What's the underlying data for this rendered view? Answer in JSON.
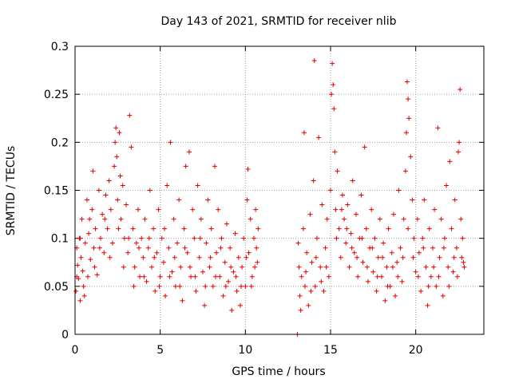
{
  "chart_data": {
    "type": "scatter",
    "title": "Day 143 of 2021, SRMTID for receiver nlib",
    "xlabel": "GPS time / hours",
    "ylabel": "SRMTID / TECUs",
    "xlim": [
      0,
      24
    ],
    "ylim": [
      0,
      0.3
    ],
    "grid": true,
    "marker": "+",
    "marker_color": "#e00000",
    "x_ticks": [
      {
        "value": 0,
        "label": "0"
      },
      {
        "value": 5,
        "label": "5"
      },
      {
        "value": 10,
        "label": "10"
      },
      {
        "value": 15,
        "label": "15"
      },
      {
        "value": 20,
        "label": "20"
      }
    ],
    "y_ticks": [
      {
        "value": 0,
        "label": "0"
      },
      {
        "value": 0.05,
        "label": "0.05"
      },
      {
        "value": 0.1,
        "label": "0.1"
      },
      {
        "value": 0.15,
        "label": "0.15"
      },
      {
        "value": 0.2,
        "label": "0.2"
      },
      {
        "value": 0.25,
        "label": "0.25"
      },
      {
        "value": 0.3,
        "label": "0.3"
      }
    ],
    "series": [
      {
        "name": "SRMTID",
        "color": "#e00000",
        "points": [
          [
            0.05,
            0.045
          ],
          [
            0.1,
            0.09
          ],
          [
            0.15,
            0.072
          ],
          [
            0.2,
            0.058
          ],
          [
            0.25,
            0.1
          ],
          [
            0.3,
            0.035
          ],
          [
            0.35,
            0.08
          ],
          [
            0.4,
            0.12
          ],
          [
            0.45,
            0.066
          ],
          [
            0.5,
            0.05
          ],
          [
            0.6,
            0.095
          ],
          [
            0.7,
            0.14
          ],
          [
            0.75,
            0.06
          ],
          [
            0.8,
            0.105
          ],
          [
            0.9,
            0.078
          ],
          [
            1.0,
            0.13
          ],
          [
            1.05,
            0.17
          ],
          [
            1.1,
            0.09
          ],
          [
            1.2,
            0.11
          ],
          [
            1.3,
            0.062
          ],
          [
            1.4,
            0.15
          ],
          [
            1.5,
            0.1
          ],
          [
            1.6,
            0.125
          ],
          [
            1.7,
            0.085
          ],
          [
            1.8,
            0.145
          ],
          [
            1.9,
            0.11
          ],
          [
            2.0,
            0.16
          ],
          [
            2.1,
            0.13
          ],
          [
            2.2,
            0.095
          ],
          [
            2.3,
            0.175
          ],
          [
            2.35,
            0.2
          ],
          [
            2.4,
            0.215
          ],
          [
            2.45,
            0.185
          ],
          [
            2.5,
            0.14
          ],
          [
            2.6,
            0.21
          ],
          [
            2.65,
            0.165
          ],
          [
            2.7,
            0.12
          ],
          [
            2.8,
            0.155
          ],
          [
            2.9,
            0.1
          ],
          [
            3.0,
            0.135
          ],
          [
            3.1,
            0.085
          ],
          [
            3.2,
            0.228
          ],
          [
            3.3,
            0.195
          ],
          [
            3.4,
            0.11
          ],
          [
            3.5,
            0.07
          ],
          [
            3.6,
            0.095
          ],
          [
            3.7,
            0.13
          ],
          [
            3.8,
            0.06
          ],
          [
            3.9,
            0.1
          ],
          [
            4.0,
            0.08
          ],
          [
            4.1,
            0.12
          ],
          [
            4.2,
            0.055
          ],
          [
            4.3,
            0.09
          ],
          [
            4.4,
            0.15
          ],
          [
            4.5,
            0.07
          ],
          [
            4.6,
            0.11
          ],
          [
            4.7,
            0.045
          ],
          [
            4.8,
            0.085
          ],
          [
            4.9,
            0.13
          ],
          [
            5.0,
            0.06
          ],
          [
            5.1,
            0.1
          ],
          [
            5.2,
            0.075
          ],
          [
            5.3,
            0.04
          ],
          [
            5.4,
            0.155
          ],
          [
            5.5,
            0.09
          ],
          [
            5.6,
            0.2
          ],
          [
            5.7,
            0.065
          ],
          [
            5.8,
            0.12
          ],
          [
            5.9,
            0.05
          ],
          [
            6.0,
            0.095
          ],
          [
            6.1,
            0.14
          ],
          [
            6.2,
            0.07
          ],
          [
            6.3,
            0.035
          ],
          [
            6.4,
            0.11
          ],
          [
            6.5,
            0.175
          ],
          [
            6.6,
            0.085
          ],
          [
            6.7,
            0.19
          ],
          [
            6.8,
            0.06
          ],
          [
            6.9,
            0.13
          ],
          [
            7.0,
            0.1
          ],
          [
            7.1,
            0.045
          ],
          [
            7.2,
            0.155
          ],
          [
            7.3,
            0.08
          ],
          [
            7.4,
            0.12
          ],
          [
            7.5,
            0.065
          ],
          [
            7.6,
            0.03
          ],
          [
            7.7,
            0.095
          ],
          [
            7.8,
            0.14
          ],
          [
            7.9,
            0.07
          ],
          [
            8.0,
            0.11
          ],
          [
            8.1,
            0.05
          ],
          [
            8.2,
            0.175
          ],
          [
            8.3,
            0.085
          ],
          [
            8.4,
            0.13
          ],
          [
            8.5,
            0.06
          ],
          [
            8.6,
            0.1
          ],
          [
            8.7,
            0.04
          ],
          [
            8.8,
            0.075
          ],
          [
            8.9,
            0.115
          ],
          [
            9.0,
            0.055
          ],
          [
            9.1,
            0.09
          ],
          [
            9.2,
            0.025
          ],
          [
            9.3,
            0.065
          ],
          [
            9.4,
            0.105
          ],
          [
            9.5,
            0.045
          ],
          [
            9.6,
            0.08
          ],
          [
            9.7,
            0.03
          ],
          [
            9.8,
            0.07
          ],
          [
            9.9,
            0.1
          ],
          [
            10.0,
            0.05
          ],
          [
            10.1,
            0.14
          ],
          [
            10.15,
            0.172
          ],
          [
            10.2,
            0.085
          ],
          [
            10.3,
            0.12
          ],
          [
            10.4,
            0.06
          ],
          [
            10.5,
            0.1
          ],
          [
            10.6,
            0.13
          ],
          [
            10.65,
            0.09
          ],
          [
            10.7,
            0.075
          ],
          [
            10.75,
            0.11
          ],
          [
            0.1,
            0.06
          ],
          [
            0.3,
            0.1
          ],
          [
            0.55,
            0.04
          ],
          [
            0.85,
            0.12
          ],
          [
            1.15,
            0.07
          ],
          [
            1.45,
            0.09
          ],
          [
            1.75,
            0.12
          ],
          [
            2.05,
            0.08
          ],
          [
            2.55,
            0.11
          ],
          [
            2.85,
            0.07
          ],
          [
            3.15,
            0.1
          ],
          [
            3.45,
            0.05
          ],
          [
            3.75,
            0.09
          ],
          [
            4.05,
            0.06
          ],
          [
            4.35,
            0.1
          ],
          [
            4.65,
            0.08
          ],
          [
            4.95,
            0.05
          ],
          [
            5.25,
            0.11
          ],
          [
            5.55,
            0.06
          ],
          [
            5.85,
            0.08
          ],
          [
            6.15,
            0.05
          ],
          [
            6.45,
            0.09
          ],
          [
            6.75,
            0.07
          ],
          [
            7.05,
            0.06
          ],
          [
            7.35,
            0.1
          ],
          [
            7.65,
            0.05
          ],
          [
            7.95,
            0.08
          ],
          [
            8.25,
            0.06
          ],
          [
            8.55,
            0.09
          ],
          [
            8.85,
            0.05
          ],
          [
            9.15,
            0.07
          ],
          [
            9.45,
            0.06
          ],
          [
            9.75,
            0.05
          ],
          [
            10.05,
            0.08
          ],
          [
            10.35,
            0.05
          ],
          [
            10.55,
            0.07
          ],
          [
            13.05,
            0.0
          ],
          [
            13.1,
            0.095
          ],
          [
            13.15,
            0.07
          ],
          [
            13.2,
            0.04
          ],
          [
            13.3,
            0.06
          ],
          [
            13.4,
            0.11
          ],
          [
            13.45,
            0.21
          ],
          [
            13.5,
            0.05
          ],
          [
            13.6,
            0.085
          ],
          [
            13.7,
            0.03
          ],
          [
            13.8,
            0.125
          ],
          [
            13.9,
            0.075
          ],
          [
            14.0,
            0.16
          ],
          [
            14.05,
            0.285
          ],
          [
            14.1,
            0.05
          ],
          [
            14.2,
            0.1
          ],
          [
            14.3,
            0.205
          ],
          [
            14.4,
            0.07
          ],
          [
            14.5,
            0.135
          ],
          [
            14.6,
            0.045
          ],
          [
            14.7,
            0.09
          ],
          [
            14.8,
            0.12
          ],
          [
            14.9,
            0.06
          ],
          [
            15.0,
            0.15
          ],
          [
            15.05,
            0.25
          ],
          [
            15.1,
            0.282
          ],
          [
            15.15,
            0.26
          ],
          [
            15.2,
            0.235
          ],
          [
            15.25,
            0.19
          ],
          [
            15.3,
            0.13
          ],
          [
            15.4,
            0.17
          ],
          [
            15.5,
            0.11
          ],
          [
            15.6,
            0.08
          ],
          [
            15.7,
            0.145
          ],
          [
            15.8,
            0.12
          ],
          [
            15.9,
            0.095
          ],
          [
            16.0,
            0.135
          ],
          [
            16.1,
            0.07
          ],
          [
            16.2,
            0.105
          ],
          [
            16.3,
            0.16
          ],
          [
            16.4,
            0.085
          ],
          [
            16.5,
            0.125
          ],
          [
            16.6,
            0.06
          ],
          [
            16.7,
            0.1
          ],
          [
            16.8,
            0.145
          ],
          [
            16.9,
            0.075
          ],
          [
            17.0,
            0.195
          ],
          [
            17.1,
            0.11
          ],
          [
            17.2,
            0.055
          ],
          [
            17.3,
            0.09
          ],
          [
            17.4,
            0.13
          ],
          [
            17.5,
            0.065
          ],
          [
            17.6,
            0.1
          ],
          [
            17.7,
            0.045
          ],
          [
            17.8,
            0.08
          ],
          [
            17.9,
            0.12
          ],
          [
            18.0,
            0.06
          ],
          [
            18.1,
            0.095
          ],
          [
            18.2,
            0.035
          ],
          [
            18.3,
            0.07
          ],
          [
            18.4,
            0.11
          ],
          [
            18.5,
            0.05
          ],
          [
            18.6,
            0.085
          ],
          [
            18.7,
            0.125
          ],
          [
            18.8,
            0.04
          ],
          [
            18.9,
            0.075
          ],
          [
            19.0,
            0.15
          ],
          [
            19.1,
            0.09
          ],
          [
            19.2,
            0.055
          ],
          [
            19.3,
            0.12
          ],
          [
            19.4,
            0.17
          ],
          [
            19.45,
            0.21
          ],
          [
            19.5,
            0.263
          ],
          [
            19.55,
            0.245
          ],
          [
            19.6,
            0.225
          ],
          [
            19.7,
            0.185
          ],
          [
            19.8,
            0.14
          ],
          [
            19.9,
            0.1
          ],
          [
            20.0,
            0.065
          ],
          [
            20.1,
            0.12
          ],
          [
            20.2,
            0.085
          ],
          [
            20.3,
            0.045
          ],
          [
            20.4,
            0.1
          ],
          [
            20.5,
            0.14
          ],
          [
            20.6,
            0.07
          ],
          [
            20.7,
            0.03
          ],
          [
            20.8,
            0.11
          ],
          [
            20.9,
            0.06
          ],
          [
            21.0,
            0.09
          ],
          [
            21.1,
            0.13
          ],
          [
            21.2,
            0.05
          ],
          [
            21.3,
            0.215
          ],
          [
            21.4,
            0.08
          ],
          [
            21.5,
            0.12
          ],
          [
            21.6,
            0.04
          ],
          [
            21.7,
            0.1
          ],
          [
            21.8,
            0.155
          ],
          [
            21.9,
            0.07
          ],
          [
            22.0,
            0.18
          ],
          [
            22.1,
            0.11
          ],
          [
            22.2,
            0.065
          ],
          [
            22.3,
            0.14
          ],
          [
            22.4,
            0.09
          ],
          [
            22.5,
            0.19
          ],
          [
            22.55,
            0.2
          ],
          [
            22.6,
            0.255
          ],
          [
            22.65,
            0.12
          ],
          [
            22.7,
            0.08
          ],
          [
            22.75,
            0.1
          ],
          [
            22.8,
            0.075
          ],
          [
            13.25,
            0.025
          ],
          [
            13.55,
            0.065
          ],
          [
            13.85,
            0.045
          ],
          [
            14.15,
            0.08
          ],
          [
            14.45,
            0.055
          ],
          [
            14.75,
            0.07
          ],
          [
            15.35,
            0.1
          ],
          [
            15.65,
            0.13
          ],
          [
            15.95,
            0.11
          ],
          [
            16.25,
            0.09
          ],
          [
            16.55,
            0.08
          ],
          [
            16.85,
            0.1
          ],
          [
            17.15,
            0.07
          ],
          [
            17.45,
            0.09
          ],
          [
            17.75,
            0.06
          ],
          [
            18.05,
            0.08
          ],
          [
            18.35,
            0.05
          ],
          [
            18.65,
            0.07
          ],
          [
            18.95,
            0.06
          ],
          [
            19.25,
            0.08
          ],
          [
            19.55,
            0.11
          ],
          [
            19.85,
            0.08
          ],
          [
            20.15,
            0.06
          ],
          [
            20.45,
            0.09
          ],
          [
            20.75,
            0.05
          ],
          [
            21.05,
            0.07
          ],
          [
            21.35,
            0.06
          ],
          [
            21.65,
            0.09
          ],
          [
            21.95,
            0.05
          ],
          [
            22.25,
            0.08
          ],
          [
            22.45,
            0.06
          ],
          [
            22.85,
            0.07
          ]
        ]
      }
    ]
  }
}
